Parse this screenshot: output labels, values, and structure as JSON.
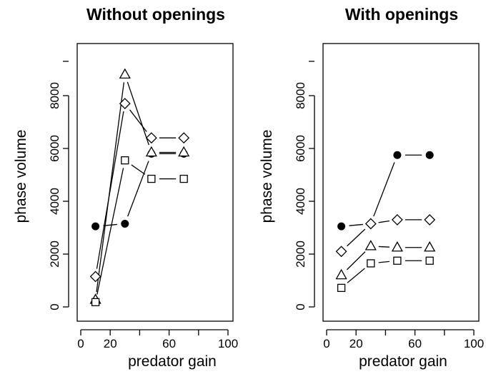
{
  "chart_data": [
    {
      "type": "line",
      "title": "Without openings",
      "xlabel": "predator gain",
      "ylabel": "phase volume",
      "xlim": [
        0,
        100
      ],
      "ylim": [
        0,
        10000
      ],
      "xticks": [
        0,
        20,
        60,
        100
      ],
      "yticks": [
        0,
        2000,
        4000,
        6000,
        8000
      ],
      "line_style": "dashed-short",
      "series": [
        {
          "marker": "filled-circle",
          "points": [
            [
              10,
              3050
            ],
            [
              30,
              3150
            ],
            [
              48,
              5800
            ],
            [
              70,
              5800
            ]
          ]
        },
        {
          "marker": "open-triangle",
          "points": [
            [
              10,
              270
            ],
            [
              30,
              8800
            ],
            [
              48,
              5850
            ],
            [
              70,
              5850
            ]
          ]
        },
        {
          "marker": "open-diamond",
          "points": [
            [
              10,
              1150
            ],
            [
              30,
              7700
            ],
            [
              48,
              6400
            ],
            [
              70,
              6400
            ]
          ]
        },
        {
          "marker": "open-square",
          "points": [
            [
              10,
              180
            ],
            [
              30,
              5550
            ],
            [
              48,
              4850
            ],
            [
              70,
              4850
            ]
          ]
        }
      ]
    },
    {
      "type": "line",
      "title": "With openings",
      "xlabel": "predator gain",
      "ylabel": "phase volume",
      "xlim": [
        0,
        100
      ],
      "ylim": [
        0,
        10000
      ],
      "xticks": [
        0,
        20,
        60,
        100
      ],
      "yticks": [
        0,
        2000,
        4000,
        6000,
        8000
      ],
      "line_style": "dashed-short",
      "series": [
        {
          "marker": "filled-circle",
          "points": [
            [
              10,
              3050
            ],
            [
              30,
              3150
            ],
            [
              48,
              5750
            ],
            [
              70,
              5750
            ]
          ]
        },
        {
          "marker": "open-diamond",
          "points": [
            [
              10,
              2100
            ],
            [
              30,
              3150
            ],
            [
              48,
              3300
            ],
            [
              70,
              3300
            ]
          ]
        },
        {
          "marker": "open-triangle",
          "points": [
            [
              10,
              1200
            ],
            [
              30,
              2300
            ],
            [
              48,
              2250
            ],
            [
              70,
              2250
            ]
          ]
        },
        {
          "marker": "open-square",
          "points": [
            [
              10,
              720
            ],
            [
              30,
              1650
            ],
            [
              48,
              1750
            ],
            [
              70,
              1750
            ]
          ]
        }
      ]
    }
  ]
}
